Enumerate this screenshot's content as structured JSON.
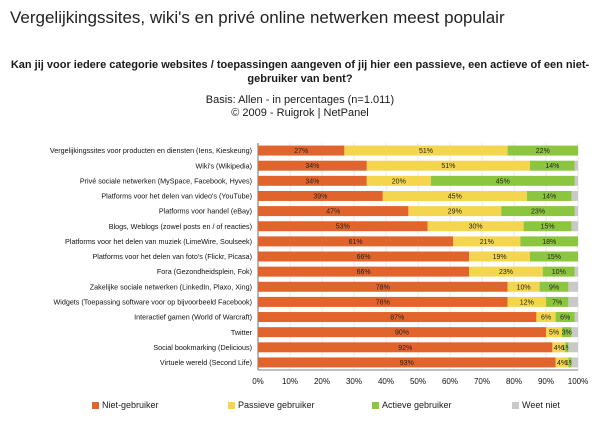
{
  "heading": "Vergelijkingssites, wiki's en privé online netwerken meest populair",
  "chart_data": {
    "type": "bar",
    "orientation": "horizontal",
    "stacked": true,
    "title": "Kan jij voor iedere categorie websites / toepassingen aangeven of jij hier een passieve, een actieve of een niet-gebruiker van bent?",
    "subtitle": "Basis: Allen - in percentages (n=1.011)",
    "source": "© 2009 - Ruigrok | NetPanel",
    "categories": [
      "Vergelijkingssites voor producten en diensten (Iens, Kieskeurig)",
      "Wiki's (Wikipedia)",
      "Privé sociale netwerken (MySpace, Facebook, Hyves)",
      "Platforms voor het delen van video's (YouTube)",
      "Platforms voor handel (eBay)",
      "Blogs, Weblogs (zowel posts en / of reacties)",
      "Platforms voor het delen van muziek (LimeWire, Soulseek)",
      "Platforms voor het delen van foto's (Flickr, Picasa)",
      "Fora (Gezondheidsplein, Fok)",
      "Zakelijke sociale netwerken (LinkedIn, Plaxo, Xing)",
      "Widgets (Toepassing software voor op bijvoorbeeld Facebook)",
      "Interactief gamen (World of Warcraft)",
      "Twitter",
      "Social bookmarking (Delicious)",
      "Virtuele wereld (Second Life)"
    ],
    "series": [
      {
        "name": "Niet-gebruiker",
        "color": "#e0642c",
        "values": [
          27,
          34,
          34,
          39,
          47,
          53,
          61,
          66,
          66,
          78,
          78,
          87,
          90,
          92,
          93
        ],
        "labels": [
          "27%",
          "34%",
          "34%",
          "39%",
          "47%",
          "53%",
          "61%",
          "66%",
          "66%",
          "78%",
          "78%",
          "87%",
          "90%",
          "92%",
          "93%"
        ]
      },
      {
        "name": "Passieve gebruiker",
        "color": "#f3d64e",
        "values": [
          51,
          51,
          20,
          45,
          29,
          30,
          21,
          19,
          23,
          10,
          12,
          6,
          5,
          4,
          4
        ],
        "labels": [
          "51%",
          "51%",
          "20%",
          "45%",
          "29%",
          "30%",
          "21%",
          "19%",
          "23%",
          "10%",
          "12%",
          "6%",
          "5%",
          "4%",
          "4%"
        ]
      },
      {
        "name": "Actieve gebruiker",
        "color": "#8cc63f",
        "values": [
          22,
          14,
          45,
          14,
          23,
          15,
          18,
          15,
          10,
          9,
          7,
          6,
          3,
          1,
          1
        ],
        "labels": [
          "22%",
          "14%",
          "45%",
          "14%",
          "23%",
          "15%",
          "18%",
          "15%",
          "10%",
          "9%",
          "7%",
          "6%",
          "3%",
          "1%",
          "1%"
        ]
      },
      {
        "name": "Weet niet",
        "color": "#c9c9c9",
        "values": [
          0,
          1,
          1,
          2,
          1,
          2,
          0,
          0,
          1,
          3,
          3,
          1,
          2,
          3,
          2
        ],
        "labels": [
          "",
          "",
          "",
          "",
          "",
          "",
          "",
          "",
          "",
          "",
          "",
          "",
          "",
          "",
          ""
        ]
      }
    ],
    "xticks": [
      "0%",
      "10%",
      "20%",
      "30%",
      "40%",
      "50%",
      "60%",
      "70%",
      "80%",
      "90%",
      "100%"
    ],
    "xlim": [
      0,
      100
    ],
    "grid": true,
    "legend_position": "bottom"
  }
}
